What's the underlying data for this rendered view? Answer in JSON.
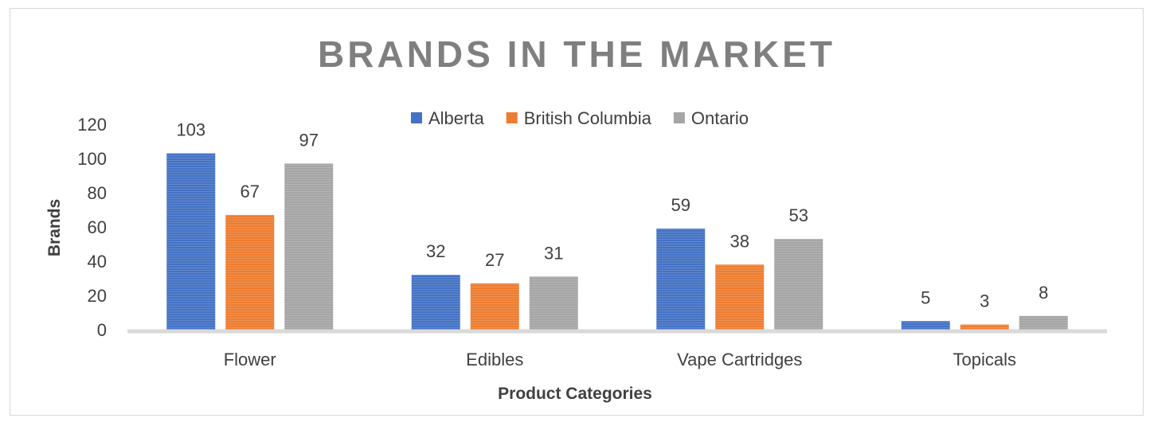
{
  "chart_data": {
    "type": "bar",
    "title": "BRANDS IN THE MARKET",
    "xlabel": "Product Categories",
    "ylabel": "Brands",
    "categories": [
      "Flower",
      "Edibles",
      "Vape Cartridges",
      "Topicals"
    ],
    "series": [
      {
        "name": "Alberta",
        "color": "#4472c4",
        "values": [
          103,
          32,
          59,
          5
        ]
      },
      {
        "name": "British Columbia",
        "color": "#ed7d31",
        "values": [
          67,
          27,
          38,
          3
        ]
      },
      {
        "name": "Ontario",
        "color": "#a5a5a5",
        "values": [
          97,
          31,
          53,
          8
        ]
      }
    ],
    "ylim": [
      0,
      120
    ],
    "yticks": [
      0,
      20,
      40,
      60,
      80,
      100,
      120
    ],
    "legend_position": "top",
    "grid": false,
    "data_labels": true
  }
}
